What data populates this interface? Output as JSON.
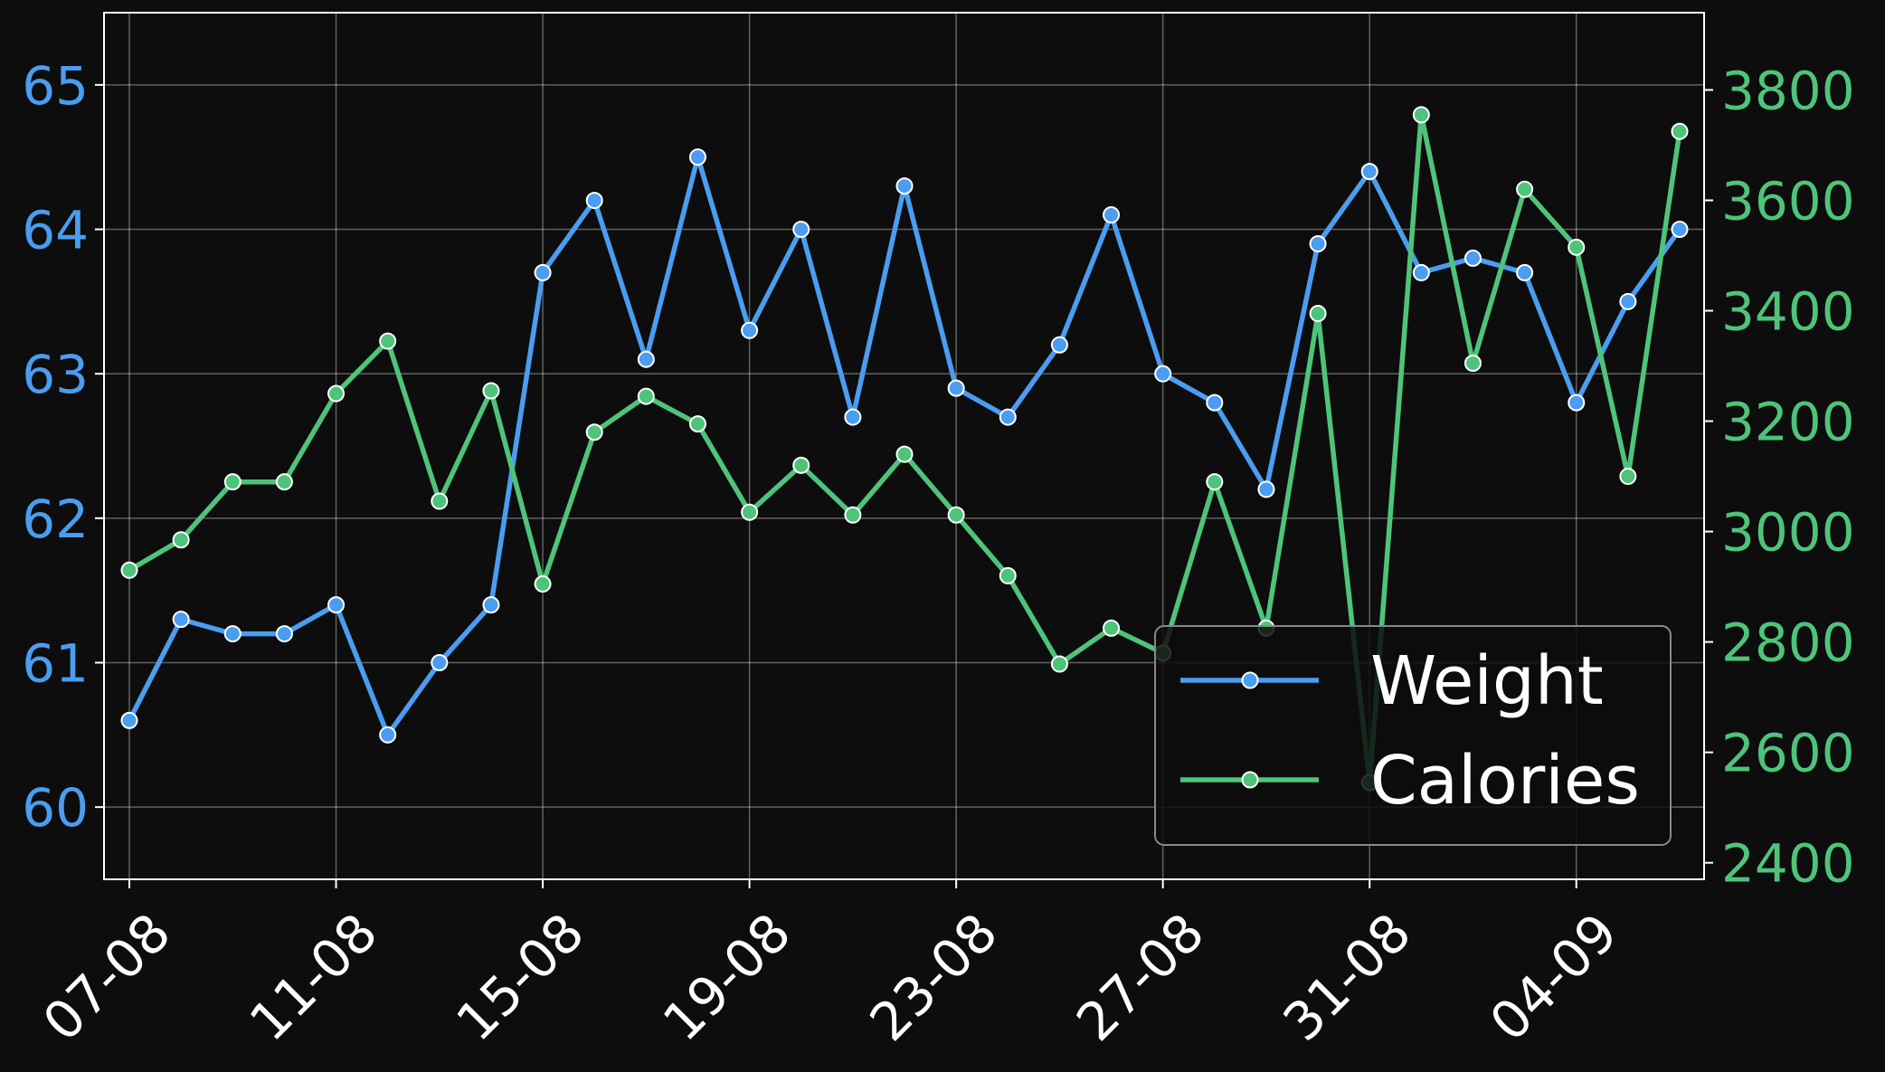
{
  "chart_data": {
    "type": "line",
    "x": [
      "07-08",
      "08-08",
      "09-08",
      "10-08",
      "11-08",
      "12-08",
      "13-08",
      "14-08",
      "15-08",
      "16-08",
      "17-08",
      "18-08",
      "19-08",
      "20-08",
      "21-08",
      "22-08",
      "23-08",
      "24-08",
      "25-08",
      "26-08",
      "27-08",
      "28-08",
      "29-08",
      "30-08",
      "31-08",
      "01-09",
      "02-09",
      "03-09",
      "04-09",
      "05-09",
      "06-09"
    ],
    "x_ticks": [
      "07-08",
      "11-08",
      "15-08",
      "19-08",
      "23-08",
      "27-08",
      "31-08",
      "04-09"
    ],
    "series": [
      {
        "name": "Weight",
        "axis": "left",
        "color": "#4a9df0",
        "values": [
          60.6,
          61.3,
          61.2,
          61.2,
          61.4,
          60.5,
          61.0,
          61.4,
          63.7,
          64.2,
          63.1,
          64.5,
          63.3,
          64.0,
          62.7,
          64.3,
          62.9,
          62.7,
          63.2,
          64.1,
          63.0,
          62.8,
          62.2,
          63.9,
          64.4,
          63.7,
          63.8,
          63.7,
          62.8,
          63.5,
          64.0
        ]
      },
      {
        "name": "Calories",
        "axis": "right",
        "color": "#4ec47a",
        "values": [
          2930,
          2985,
          3090,
          3090,
          3250,
          3345,
          3055,
          3255,
          2905,
          3180,
          3245,
          3195,
          3035,
          3120,
          3030,
          3140,
          3030,
          2920,
          2760,
          2825,
          2780,
          3090,
          2825,
          3395,
          2545,
          3755,
          3305,
          3620,
          3515,
          3100,
          3725
        ]
      }
    ],
    "y_left": {
      "lim": [
        59.5,
        65.5
      ],
      "ticks": [
        60,
        61,
        62,
        63,
        64,
        65
      ]
    },
    "y_right": {
      "lim": [
        2370,
        3940
      ],
      "ticks": [
        2400,
        2600,
        2800,
        3000,
        3200,
        3400,
        3600,
        3800
      ]
    },
    "grid": true,
    "legend_position": "lower-right",
    "background": "#0d0d0d"
  }
}
